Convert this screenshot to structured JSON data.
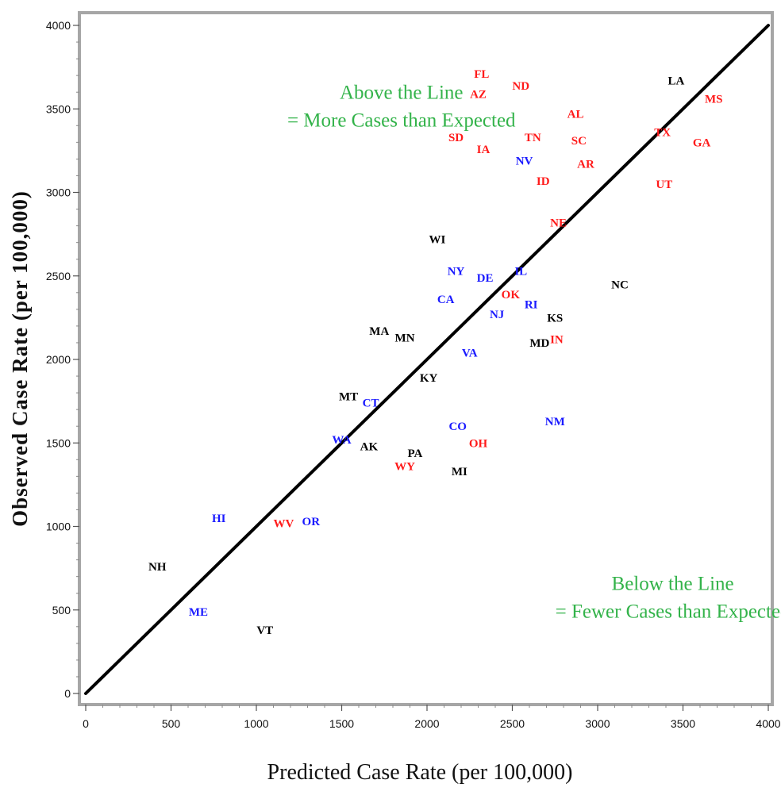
{
  "chart_data": {
    "type": "scatter",
    "title": "",
    "xlabel": "Predicted Case Rate (per 100,000)",
    "ylabel": "Observed Case Rate (per 100,000)",
    "xlim": [
      0,
      4000
    ],
    "ylim": [
      0,
      4000
    ],
    "xticks": [
      "0",
      "500",
      "1000",
      "1500",
      "2000",
      "2500",
      "3000",
      "3500",
      "4000"
    ],
    "yticks": [
      "0",
      "500",
      "1000",
      "1500",
      "2000",
      "2500",
      "3000",
      "3500",
      "4000"
    ],
    "grid": false,
    "reference_line": {
      "from": [
        0,
        0
      ],
      "to": [
        4000,
        4000
      ],
      "color": "#000000"
    },
    "annotations": [
      {
        "lines": [
          "Above the Line",
          "= More Cases than Expected"
        ],
        "x": 1850,
        "y": 3560,
        "color": "#33b34a"
      },
      {
        "lines": [
          "Below the Line",
          "= Fewer Cases than Expected"
        ],
        "x": 3440,
        "y": 620,
        "color": "#33b34a"
      }
    ],
    "colors": {
      "red": "#ff1a1a",
      "blue": "#1a1aff",
      "black": "#000000"
    },
    "points": [
      {
        "label": "FL",
        "x": 2320,
        "y": 3710,
        "color": "red"
      },
      {
        "label": "AZ",
        "x": 2300,
        "y": 3590,
        "color": "red"
      },
      {
        "label": "ND",
        "x": 2550,
        "y": 3640,
        "color": "red"
      },
      {
        "label": "LA",
        "x": 3460,
        "y": 3670,
        "color": "black"
      },
      {
        "label": "MS",
        "x": 3680,
        "y": 3560,
        "color": "red"
      },
      {
        "label": "AL",
        "x": 2870,
        "y": 3470,
        "color": "red"
      },
      {
        "label": "SD",
        "x": 2170,
        "y": 3330,
        "color": "red"
      },
      {
        "label": "TN",
        "x": 2620,
        "y": 3330,
        "color": "red"
      },
      {
        "label": "SC",
        "x": 2890,
        "y": 3310,
        "color": "red"
      },
      {
        "label": "TX",
        "x": 3380,
        "y": 3360,
        "color": "red"
      },
      {
        "label": "GA",
        "x": 3610,
        "y": 3300,
        "color": "red"
      },
      {
        "label": "IA",
        "x": 2330,
        "y": 3260,
        "color": "red"
      },
      {
        "label": "NV",
        "x": 2570,
        "y": 3190,
        "color": "blue"
      },
      {
        "label": "AR",
        "x": 2930,
        "y": 3170,
        "color": "red"
      },
      {
        "label": "ID",
        "x": 2680,
        "y": 3070,
        "color": "red"
      },
      {
        "label": "UT",
        "x": 3390,
        "y": 3050,
        "color": "red"
      },
      {
        "label": "NE",
        "x": 2770,
        "y": 2820,
        "color": "red"
      },
      {
        "label": "WI",
        "x": 2060,
        "y": 2720,
        "color": "black"
      },
      {
        "label": "NY",
        "x": 2170,
        "y": 2530,
        "color": "blue"
      },
      {
        "label": "DE",
        "x": 2340,
        "y": 2490,
        "color": "blue"
      },
      {
        "label": "IL",
        "x": 2550,
        "y": 2530,
        "color": "blue"
      },
      {
        "label": "NC",
        "x": 3130,
        "y": 2450,
        "color": "black"
      },
      {
        "label": "OK",
        "x": 2490,
        "y": 2390,
        "color": "red"
      },
      {
        "label": "CA",
        "x": 2110,
        "y": 2360,
        "color": "blue"
      },
      {
        "label": "RI",
        "x": 2610,
        "y": 2330,
        "color": "blue"
      },
      {
        "label": "KS",
        "x": 2750,
        "y": 2250,
        "color": "black"
      },
      {
        "label": "NJ",
        "x": 2410,
        "y": 2270,
        "color": "blue"
      },
      {
        "label": "MA",
        "x": 1720,
        "y": 2170,
        "color": "black"
      },
      {
        "label": "MN",
        "x": 1870,
        "y": 2130,
        "color": "black"
      },
      {
        "label": "MD",
        "x": 2660,
        "y": 2100,
        "color": "black"
      },
      {
        "label": "IN",
        "x": 2760,
        "y": 2120,
        "color": "red"
      },
      {
        "label": "VA",
        "x": 2250,
        "y": 2040,
        "color": "blue"
      },
      {
        "label": "KY",
        "x": 2010,
        "y": 1890,
        "color": "black"
      },
      {
        "label": "MT",
        "x": 1540,
        "y": 1780,
        "color": "black"
      },
      {
        "label": "CT",
        "x": 1670,
        "y": 1740,
        "color": "blue"
      },
      {
        "label": "CO",
        "x": 2180,
        "y": 1600,
        "color": "blue"
      },
      {
        "label": "NM",
        "x": 2750,
        "y": 1630,
        "color": "blue"
      },
      {
        "label": "OH",
        "x": 2300,
        "y": 1500,
        "color": "red"
      },
      {
        "label": "WA",
        "x": 1500,
        "y": 1520,
        "color": "blue"
      },
      {
        "label": "AK",
        "x": 1660,
        "y": 1480,
        "color": "black"
      },
      {
        "label": "PA",
        "x": 1930,
        "y": 1440,
        "color": "black"
      },
      {
        "label": "WY",
        "x": 1870,
        "y": 1360,
        "color": "red"
      },
      {
        "label": "MI",
        "x": 2190,
        "y": 1330,
        "color": "black"
      },
      {
        "label": "HI",
        "x": 780,
        "y": 1050,
        "color": "blue"
      },
      {
        "label": "WV",
        "x": 1160,
        "y": 1020,
        "color": "red"
      },
      {
        "label": "OR",
        "x": 1320,
        "y": 1030,
        "color": "blue"
      },
      {
        "label": "NH",
        "x": 420,
        "y": 760,
        "color": "black"
      },
      {
        "label": "ME",
        "x": 660,
        "y": 490,
        "color": "blue"
      },
      {
        "label": "VT",
        "x": 1050,
        "y": 380,
        "color": "black"
      }
    ]
  }
}
